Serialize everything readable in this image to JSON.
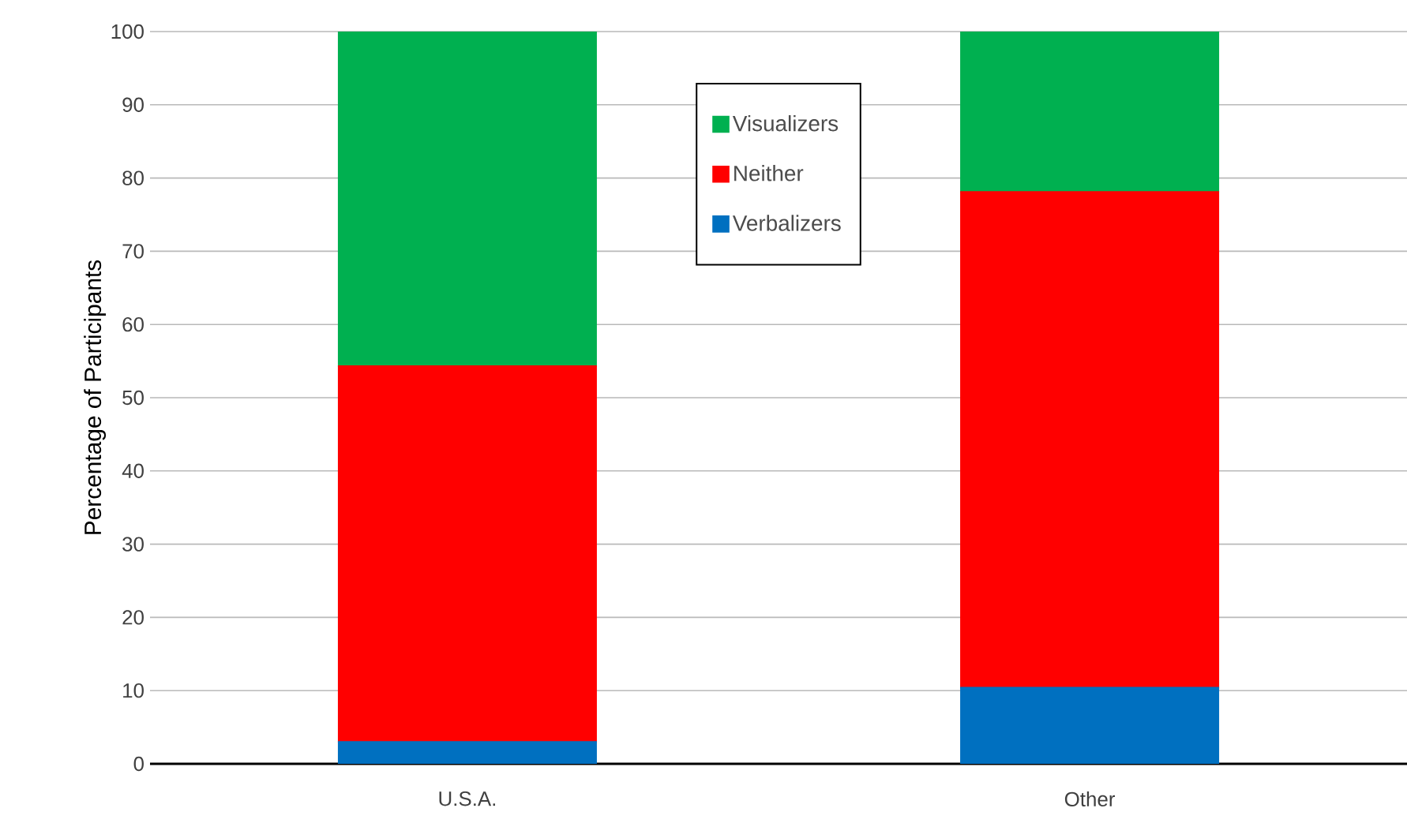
{
  "chart_data": {
    "type": "bar",
    "stacked": true,
    "ylabel": "Percentage of Participants",
    "categories": [
      "U.S.A.",
      "Other"
    ],
    "series": [
      {
        "name": "Verbalizers",
        "color": "#0070c0",
        "values": [
          3.0,
          10.4
        ]
      },
      {
        "name": "Neither",
        "color": "#ff0000",
        "values": [
          51.3,
          67.7
        ]
      },
      {
        "name": "Visualizers",
        "color": "#00b050",
        "values": [
          45.7,
          21.9
        ]
      }
    ],
    "ylim": [
      0,
      100
    ],
    "yticks": [
      0,
      10,
      20,
      30,
      40,
      50,
      60,
      70,
      80,
      90,
      100
    ],
    "grid": "y",
    "legend": "top"
  }
}
